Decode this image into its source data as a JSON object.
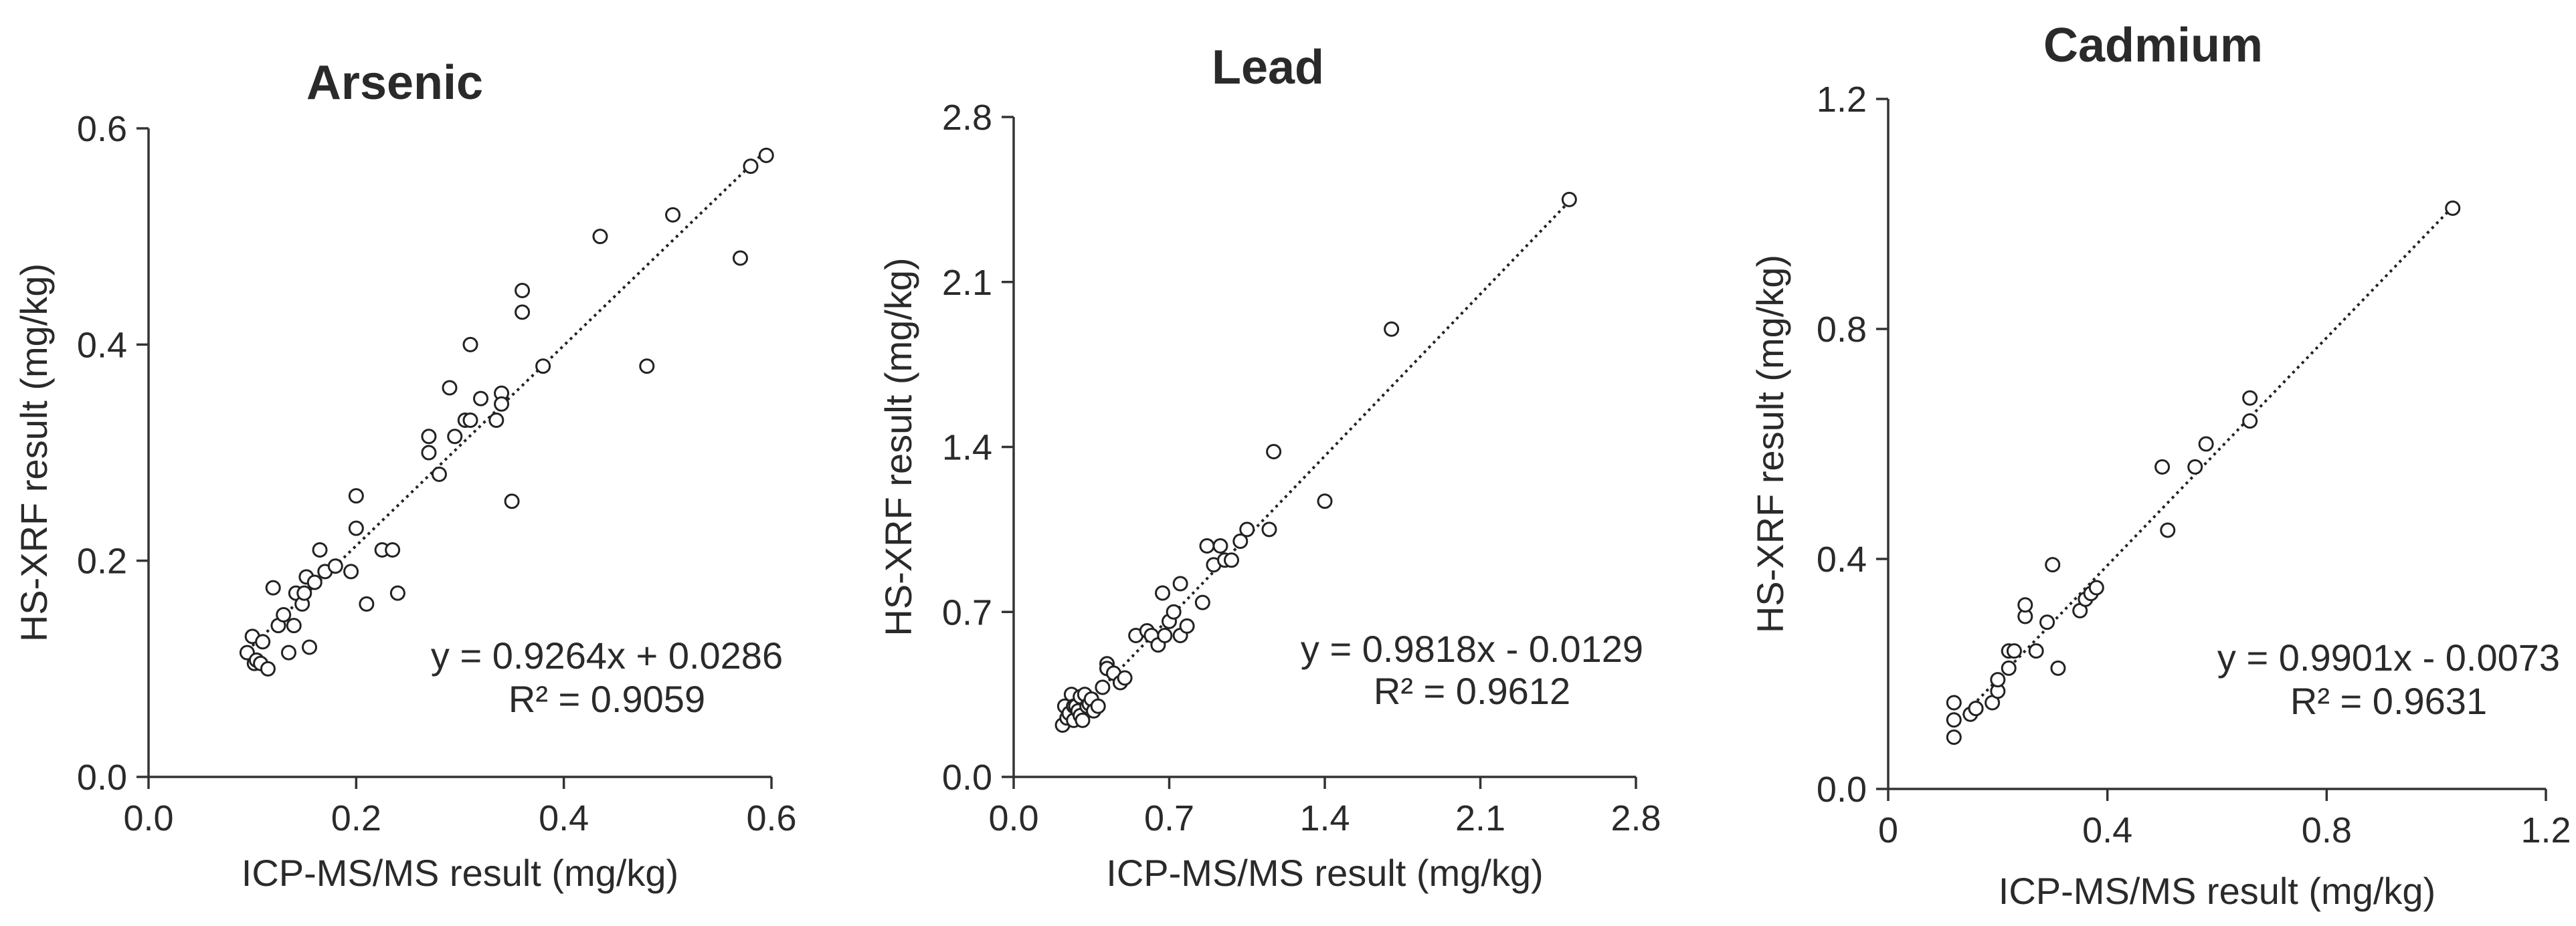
{
  "chart_data": [
    {
      "type": "scatter",
      "title": "Arsenic",
      "xlabel": "ICP-MS/MS result (mg/kg)",
      "ylabel": "HS-XRF result (mg/kg)",
      "xlim": [
        0,
        0.6
      ],
      "ylim": [
        0,
        0.6
      ],
      "xticks": [
        "0.0",
        "0.2",
        "0.4",
        "0.6"
      ],
      "yticks": [
        "0.0",
        "0.2",
        "0.4",
        "0.6"
      ],
      "equation": "y = 0.9264x + 0.0286",
      "r2": "R² = 0.9059",
      "trendline": {
        "slope": 0.9264,
        "intercept": 0.0286,
        "x_range": [
          0.1,
          0.59
        ]
      },
      "x": [
        0.095,
        0.1,
        0.102,
        0.104,
        0.108,
        0.11,
        0.115,
        0.12,
        0.125,
        0.13,
        0.135,
        0.14,
        0.142,
        0.148,
        0.15,
        0.152,
        0.155,
        0.16,
        0.165,
        0.17,
        0.18,
        0.195,
        0.2,
        0.2,
        0.21,
        0.225,
        0.235,
        0.24,
        0.27,
        0.27,
        0.28,
        0.29,
        0.295,
        0.305,
        0.31,
        0.31,
        0.32,
        0.335,
        0.34,
        0.34,
        0.35,
        0.36,
        0.36,
        0.38,
        0.435,
        0.48,
        0.505,
        0.57,
        0.58,
        0.595
      ],
      "y": [
        0.115,
        0.13,
        0.105,
        0.108,
        0.105,
        0.125,
        0.1,
        0.175,
        0.14,
        0.15,
        0.115,
        0.14,
        0.17,
        0.16,
        0.17,
        0.185,
        0.12,
        0.18,
        0.21,
        0.19,
        0.195,
        0.19,
        0.26,
        0.23,
        0.16,
        0.21,
        0.21,
        0.17,
        0.315,
        0.3,
        0.28,
        0.36,
        0.315,
        0.33,
        0.33,
        0.4,
        0.35,
        0.33,
        0.355,
        0.345,
        0.255,
        0.45,
        0.43,
        0.38,
        0.5,
        0.38,
        0.52,
        0.48,
        0.565,
        0.575
      ]
    },
    {
      "type": "scatter",
      "title": "Lead",
      "xlabel": "ICP-MS/MS result (mg/kg)",
      "ylabel": "HS-XRF result (mg/kg)",
      "xlim": [
        0,
        2.8
      ],
      "ylim": [
        0,
        2.8
      ],
      "xticks": [
        "0.0",
        "0.7",
        "1.4",
        "2.1",
        "2.8"
      ],
      "yticks": [
        "0.0",
        "0.7",
        "1.4",
        "2.1",
        "2.8"
      ],
      "equation": "y = 0.9818x - 0.0129",
      "r2": "R² = 0.9612",
      "trendline": {
        "slope": 0.9818,
        "intercept": -0.0129,
        "x_range": [
          0.22,
          2.5
        ]
      },
      "x": [
        0.22,
        0.23,
        0.24,
        0.25,
        0.26,
        0.27,
        0.27,
        0.28,
        0.29,
        0.3,
        0.3,
        0.31,
        0.32,
        0.33,
        0.34,
        0.35,
        0.36,
        0.38,
        0.4,
        0.42,
        0.42,
        0.45,
        0.48,
        0.5,
        0.55,
        0.6,
        0.62,
        0.65,
        0.67,
        0.68,
        0.7,
        0.72,
        0.75,
        0.75,
        0.78,
        0.85,
        0.87,
        0.9,
        0.93,
        0.95,
        0.98,
        1.02,
        1.05,
        1.15,
        1.17,
        1.4,
        1.7,
        2.5
      ],
      "y": [
        0.22,
        0.3,
        0.25,
        0.27,
        0.35,
        0.24,
        0.3,
        0.3,
        0.28,
        0.26,
        0.34,
        0.24,
        0.35,
        0.3,
        0.31,
        0.33,
        0.28,
        0.3,
        0.38,
        0.48,
        0.46,
        0.44,
        0.4,
        0.42,
        0.6,
        0.62,
        0.6,
        0.56,
        0.78,
        0.6,
        0.66,
        0.7,
        0.82,
        0.6,
        0.64,
        0.74,
        0.98,
        0.9,
        0.98,
        0.92,
        0.92,
        1.0,
        1.05,
        1.05,
        1.38,
        1.17,
        1.9,
        2.45
      ]
    },
    {
      "type": "scatter",
      "title": "Cadmium",
      "xlabel": "ICP-MS/MS result (mg/kg)",
      "ylabel": "HS-XRF result (mg/kg)",
      "xlim": [
        0,
        1.2
      ],
      "ylim": [
        0,
        1.2
      ],
      "xticks": [
        "0",
        "0.4",
        "0.8",
        "1.2"
      ],
      "yticks": [
        "0.0",
        "0.4",
        "0.8",
        "1.2"
      ],
      "equation": "y = 0.9901x - 0.0073",
      "r2": "R² = 0.9631",
      "trendline": {
        "slope": 0.9901,
        "intercept": -0.0073,
        "x_range": [
          0.12,
          1.03
        ]
      },
      "x": [
        0.12,
        0.12,
        0.12,
        0.15,
        0.16,
        0.16,
        0.19,
        0.2,
        0.2,
        0.22,
        0.22,
        0.23,
        0.25,
        0.25,
        0.27,
        0.29,
        0.3,
        0.31,
        0.35,
        0.36,
        0.37,
        0.38,
        0.5,
        0.51,
        0.56,
        0.58,
        0.66,
        0.66,
        1.03
      ],
      "y": [
        0.09,
        0.12,
        0.15,
        0.13,
        0.14,
        0.14,
        0.15,
        0.17,
        0.19,
        0.21,
        0.24,
        0.24,
        0.3,
        0.32,
        0.24,
        0.29,
        0.39,
        0.21,
        0.31,
        0.33,
        0.34,
        0.35,
        0.56,
        0.45,
        0.56,
        0.6,
        0.64,
        0.68,
        1.01
      ]
    }
  ]
}
